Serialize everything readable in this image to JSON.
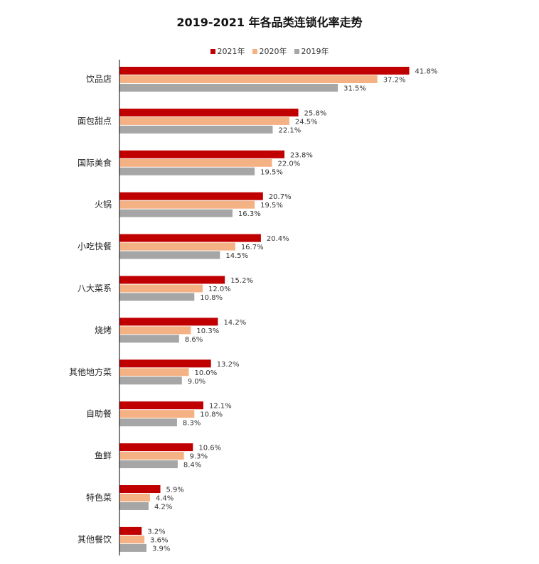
{
  "chart_data": {
    "type": "bar",
    "orientation": "horizontal",
    "title": "2019-2021 年各品类连锁化率走势",
    "categories": [
      "饮品店",
      "面包甜点",
      "国际美食",
      "火锅",
      "小吃快餐",
      "八大菜系",
      "烧烤",
      "其他地方菜",
      "自助餐",
      "鱼鲜",
      "特色菜",
      "其他餐饮"
    ],
    "series": [
      {
        "name": "2021年",
        "color": "#c00000",
        "values": [
          41.8,
          25.8,
          23.8,
          20.7,
          20.4,
          15.2,
          14.2,
          13.2,
          12.1,
          10.6,
          5.9,
          3.2
        ]
      },
      {
        "name": "2020年",
        "color": "#f4b183",
        "values": [
          37.2,
          24.5,
          22.0,
          19.5,
          16.7,
          12.0,
          10.3,
          10.0,
          10.8,
          9.3,
          4.4,
          3.6
        ]
      },
      {
        "name": "2019年",
        "color": "#a6a6a6",
        "values": [
          31.5,
          22.1,
          19.5,
          16.3,
          14.5,
          10.8,
          8.6,
          9.0,
          8.3,
          8.4,
          4.2,
          3.9
        ]
      }
    ],
    "value_format": "percent_1dp",
    "legend_position": "top",
    "grid": false
  }
}
